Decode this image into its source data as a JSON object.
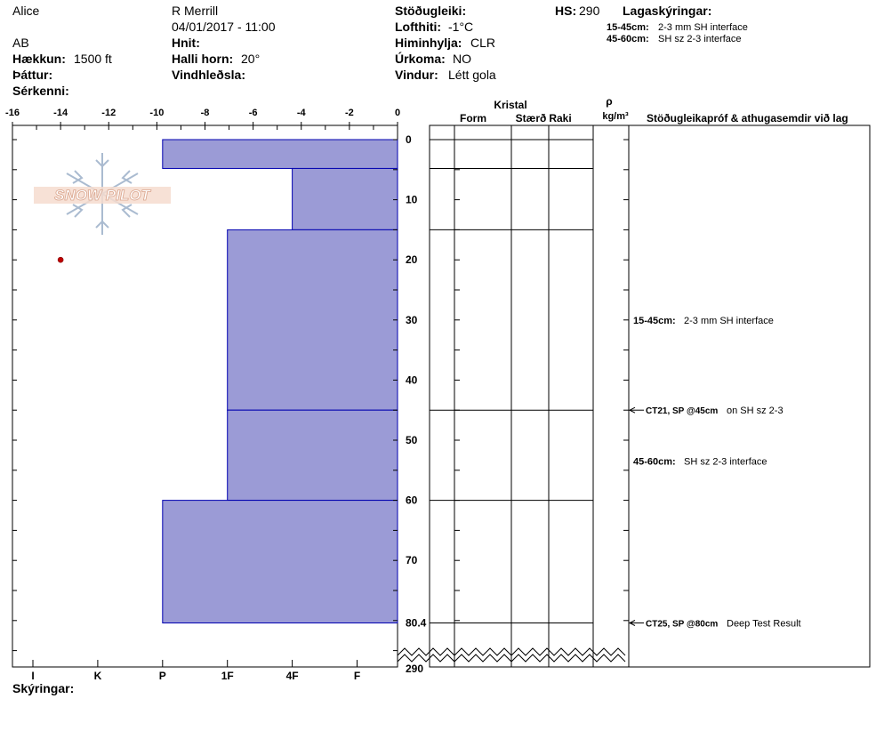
{
  "header": {
    "observer_name": "Alice",
    "observer2_name": "R Merrill",
    "date_time": "04/01/2017 - 11:00",
    "location_code": "AB",
    "coords_label": "Hnit:",
    "elevation_label": "Hækkun:",
    "elevation_value": "1500 ft",
    "slope_label": "Halli horn:",
    "slope_value": "20°",
    "aspect_label": "Þáttur:",
    "wind_loading_label": "Vindhleðsla:",
    "features_label": "Sérkenni:",
    "stability_label": "Stöðugleiki:",
    "air_temp_label": "Lofthiti:",
    "air_temp_value": "-1°C",
    "sky_label": "Himinhylja:",
    "sky_value": "CLR",
    "precip_label": "Úrkoma:",
    "precip_value": "NO",
    "wind_label": "Vindur:",
    "wind_value": "Létt gola",
    "hs_label": "HS:",
    "hs_value": "290",
    "layers_notes_label": "Lagaskýringar:",
    "layer_notes": [
      {
        "range": "15-45cm:",
        "text": "2-3 mm SH interface"
      },
      {
        "range": "45-60cm:",
        "text": "SH sz 2-3 interface"
      }
    ],
    "legend_label": "Skýringar:"
  },
  "logo_text": "SNOW PILOT",
  "columns": {
    "crystal": "Kristal",
    "form": "Form",
    "size": "Stærð",
    "moisture": "Raki",
    "rho": "ρ",
    "density_unit": "kg/m³",
    "stability_header": "Stöðugleikapróf & athugasemdir við lag"
  },
  "chart_data": {
    "type": "bar",
    "x_temp": {
      "min": -16,
      "max": 0,
      "ticks": [
        "-16",
        "-14",
        "-12",
        "-10",
        "-8",
        "-6",
        "-4",
        "-2",
        "0"
      ]
    },
    "hardness_ticks": [
      "I",
      "K",
      "P",
      "1F",
      "4F",
      "F"
    ],
    "depth_ticks": [
      "0",
      "10",
      "20",
      "30",
      "40",
      "50",
      "60",
      "70",
      "80.4"
    ],
    "depth_max": 80.4,
    "depth_bottom_label": "290",
    "hardness_layers": [
      {
        "top": 0,
        "bottom": 4.8,
        "hardness": "P"
      },
      {
        "top": 4.8,
        "bottom": 15,
        "hardness": "4F"
      },
      {
        "top": 15,
        "bottom": 45,
        "hardness": "1F"
      },
      {
        "top": 45,
        "bottom": 60,
        "hardness": "1F"
      },
      {
        "top": 60,
        "bottom": 80.4,
        "hardness": "P"
      }
    ],
    "temperature_points": [
      {
        "depth": 20,
        "temp": -14
      }
    ],
    "layer_boundaries": [
      0,
      4.8,
      15,
      45,
      60,
      80.4
    ],
    "layer_comments": [
      {
        "depth": 30,
        "range": "15-45cm:",
        "text": "2-3 mm SH interface"
      },
      {
        "depth": 53.5,
        "range": "45-60cm:",
        "text": "SH sz 2-3 interface"
      }
    ],
    "stability_tests": [
      {
        "depth": 45,
        "code": "CT21, SP @45cm",
        "text": "on SH sz 2-3"
      },
      {
        "depth": 80.4,
        "code": "CT25, SP @80cm",
        "text": "Deep Test Result"
      }
    ],
    "colors": {
      "layer_fill": "#9b9bd6",
      "layer_stroke": "#0000b0",
      "temp_point": "#c00000"
    }
  }
}
